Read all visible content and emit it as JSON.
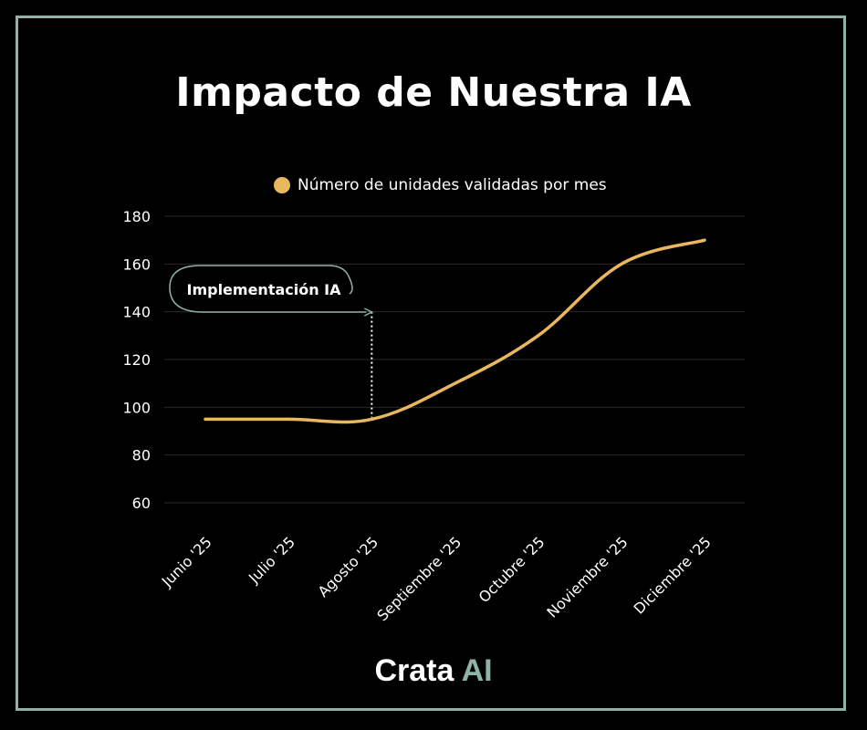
{
  "title": "Impacto de Nuestra IA",
  "brand": {
    "name": "Crata",
    "suffix": "AI"
  },
  "colors": {
    "line": "#e8b75f",
    "frame": "#8fb3a4",
    "background": "#000000"
  },
  "chart_data": {
    "type": "line",
    "title": "Impacto de Nuestra IA",
    "xlabel": "",
    "ylabel": "",
    "categories": [
      "Junio '25",
      "Julio '25",
      "Agosto '25",
      "Septiembre '25",
      "Octubre '25",
      "Noviembre '25",
      "Diciembre '25"
    ],
    "series": [
      {
        "name": "Número de unidades validadas por mes",
        "values": [
          95,
          95,
          95,
          110,
          130,
          160,
          170
        ]
      }
    ],
    "ylim": [
      60,
      180
    ],
    "yticks": [
      60,
      80,
      100,
      120,
      140,
      160,
      180
    ],
    "grid": true,
    "legend": "top",
    "annotations": [
      {
        "text": "Implementación IA",
        "category": "Agosto '25"
      }
    ]
  }
}
